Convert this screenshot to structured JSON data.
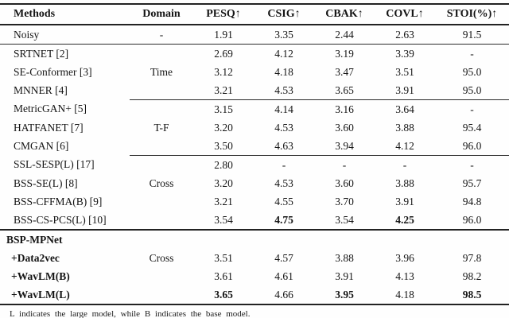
{
  "table": {
    "headers": [
      "Methods",
      "Domain",
      "PESQ↑",
      "CSIG↑",
      "CBAK↑",
      "COVL↑",
      "STOI(%)↑"
    ],
    "rows": [
      {
        "method": "Noisy",
        "domain": "-",
        "values": [
          "1.91",
          "3.35",
          "2.44",
          "2.63",
          "91.5"
        ]
      },
      {
        "method": "SRTNET [2]",
        "domain": "",
        "values": [
          "2.69",
          "4.12",
          "3.19",
          "3.39",
          "-"
        ],
        "rule_top": "thin"
      },
      {
        "method": "SE-Conformer [3]",
        "domain": "Time",
        "values": [
          "3.12",
          "4.18",
          "3.47",
          "3.51",
          "95.0"
        ]
      },
      {
        "method": "MNNER [4]",
        "domain": "",
        "values": [
          "3.21",
          "4.53",
          "3.65",
          "3.91",
          "95.0"
        ]
      },
      {
        "method": "MetricGAN+ [5]",
        "domain": "",
        "values": [
          "3.15",
          "4.14",
          "3.16",
          "3.64",
          "-"
        ],
        "rule_top": "partial"
      },
      {
        "method": "HATFANET [7]",
        "domain": "T-F",
        "values": [
          "3.20",
          "4.53",
          "3.60",
          "3.88",
          "95.4"
        ]
      },
      {
        "method": "CMGAN [6]",
        "domain": "",
        "values": [
          "3.50",
          "4.63",
          "3.94",
          "4.12",
          "96.0"
        ]
      },
      {
        "method": "SSL-SESP(L) [17]",
        "domain": "",
        "values": [
          "2.80",
          "-",
          "-",
          "-",
          "-"
        ],
        "rule_top": "partial"
      },
      {
        "method": "BSS-SE(L) [8]",
        "domain": "Cross",
        "values": [
          "3.20",
          "4.53",
          "3.60",
          "3.88",
          "95.7"
        ]
      },
      {
        "method": "BSS-CFFMA(B) [9]",
        "domain": "",
        "values": [
          "3.21",
          "4.55",
          "3.70",
          "3.91",
          "94.8"
        ]
      },
      {
        "method": "BSS-CS-PCS(L) [10]",
        "domain": "",
        "values": [
          "3.54",
          "4.75",
          "3.54",
          "4.25",
          "96.0"
        ],
        "bold_values": [
          1,
          3
        ]
      },
      {
        "method": "BSP-MPNet",
        "domain": "",
        "values": [
          "",
          "",
          "",
          "",
          ""
        ],
        "bold_method": true,
        "outdent": true,
        "rule_top": "thick"
      },
      {
        "method": "+Data2vec",
        "domain": "Cross",
        "values": [
          "3.51",
          "4.57",
          "3.88",
          "3.96",
          "97.8"
        ],
        "bold_method": true,
        "indent": true
      },
      {
        "method": "+WavLM(B)",
        "domain": "",
        "values": [
          "3.61",
          "4.61",
          "3.91",
          "4.13",
          "98.2"
        ],
        "bold_method": true,
        "indent": true
      },
      {
        "method": "+WavLM(L)",
        "domain": "",
        "values": [
          "3.65",
          "4.66",
          "3.95",
          "4.18",
          "98.5"
        ],
        "bold_method": true,
        "indent": true,
        "bold_values": [
          0,
          2,
          4
        ]
      }
    ],
    "footnote": "L indicates the large model, while B indicates the base model."
  }
}
